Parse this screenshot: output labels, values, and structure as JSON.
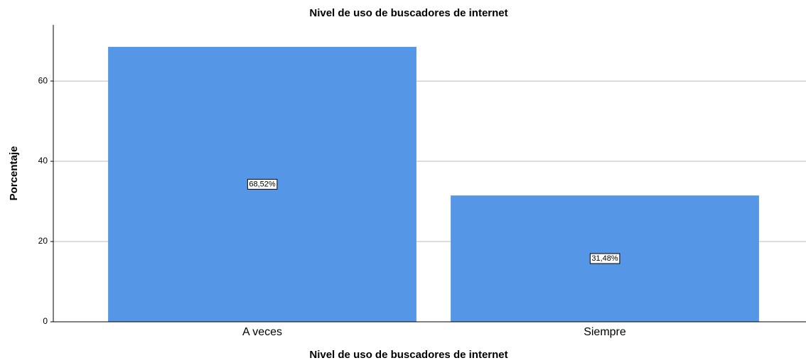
{
  "chart_data": {
    "type": "bar",
    "title": "Nivel de uso de buscadores de internet",
    "x_label": "Nivel de uso de buscadores de internet",
    "y_label": "Porcentaje",
    "categories": [
      "A veces",
      "Siempre"
    ],
    "values": [
      68.52,
      31.48
    ],
    "value_labels": [
      "68,52%",
      "31,48%"
    ],
    "color": "#5596e6",
    "ylim": [
      0,
      74
    ],
    "yticks": [
      0,
      20,
      40,
      60
    ],
    "grid": true
  }
}
